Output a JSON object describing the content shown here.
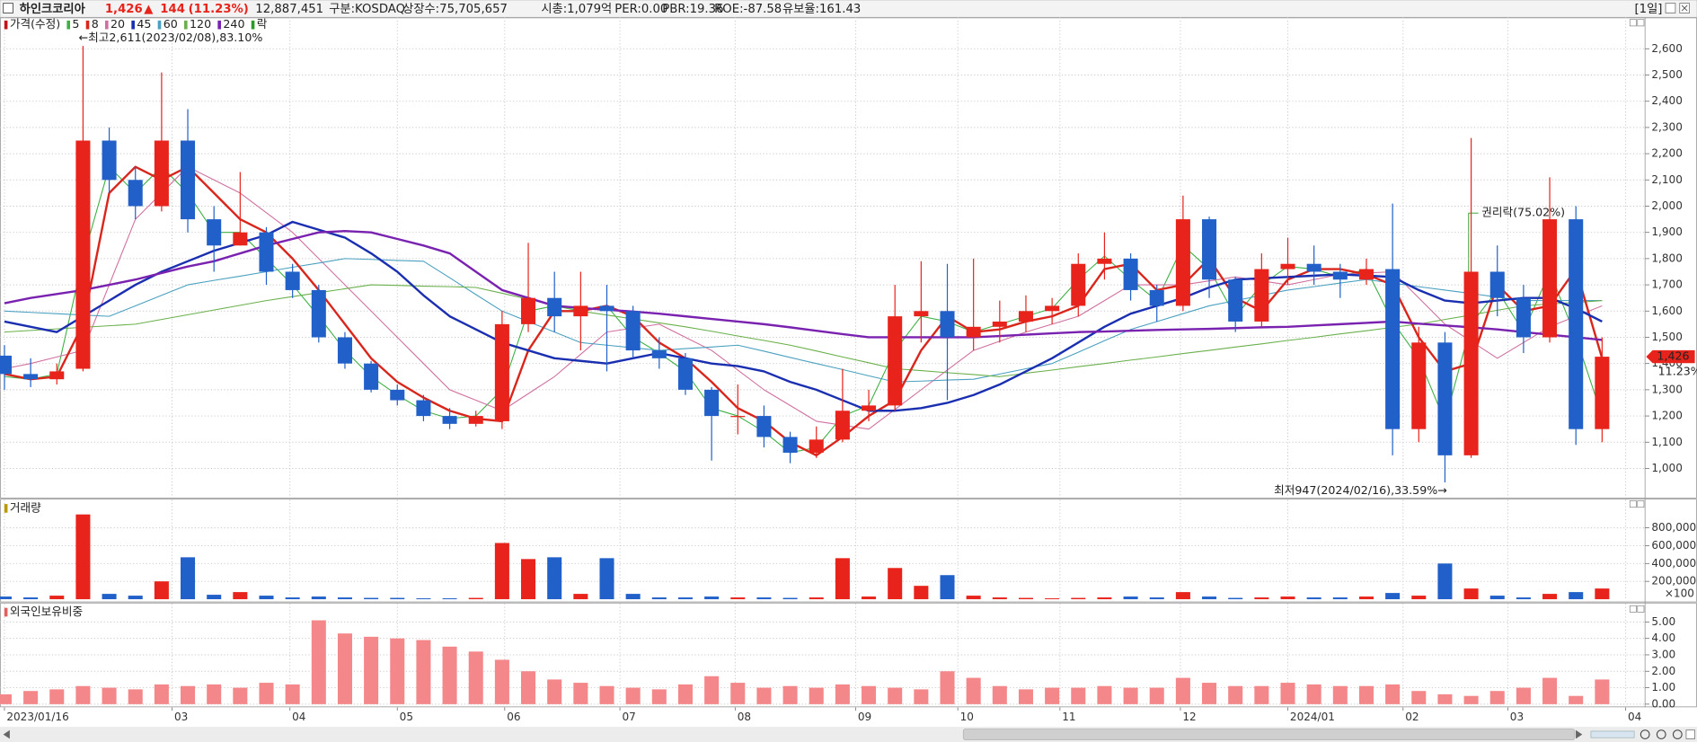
{
  "header": {
    "name": "하인크코리아",
    "price": "1,426",
    "arrow": "▲",
    "change": "144",
    "change_rate": "(11.23%)",
    "volume": "12,887,451",
    "market": "구분:KOSDAQ",
    "shares": "상장수:75,705,657",
    "market_cap": "시총:1,079억",
    "per": "PER:0.00",
    "pbr": "PBR:19.36",
    "roe": "ROE:-87.58",
    "reserve_ratio": "유보율:161.43",
    "period": "[1일]"
  },
  "chart_data": [
    {
      "type": "candlestick",
      "name": "가격(수정)",
      "name_color": "#c0141a",
      "up_color": "#e8231b",
      "down_color": "#2060c8",
      "open": [
        1430,
        1360,
        1340,
        1380,
        2250,
        2100,
        2000,
        2250,
        1950,
        1850,
        1900,
        1750,
        1680,
        1500,
        1400,
        1300,
        1260,
        1200,
        1170,
        1180,
        1550,
        1650,
        1580,
        1620,
        1600,
        1450,
        1420,
        1300,
        1200,
        1200,
        1120,
        1060,
        1110,
        1220,
        1240,
        1580,
        1600,
        1500,
        1540,
        1560,
        1600,
        1620,
        1780,
        1800,
        1680,
        1620,
        1950,
        1720,
        1560,
        1760,
        1780,
        1750,
        1720,
        1760,
        1150,
        1480,
        1050,
        1750,
        1650,
        1500,
        1950,
        1150
      ],
      "high": [
        1470,
        1420,
        1400,
        2611,
        2300,
        2150,
        2510,
        2370,
        2000,
        2130,
        1920,
        1780,
        1700,
        1520,
        1410,
        1320,
        1280,
        1230,
        1220,
        1600,
        1860,
        1750,
        1750,
        1700,
        1620,
        1500,
        1440,
        1310,
        1320,
        1240,
        1140,
        1160,
        1380,
        1300,
        1700,
        1790,
        1780,
        1800,
        1640,
        1660,
        1650,
        1820,
        1900,
        1820,
        1700,
        2040,
        1960,
        1730,
        1820,
        1880,
        1850,
        1780,
        1800,
        2010,
        1540,
        1520,
        2260,
        1850,
        1700,
        2110,
        2000,
        1500
      ],
      "low": [
        1300,
        1310,
        1320,
        1370,
        2050,
        1950,
        1980,
        1900,
        1750,
        1850,
        1700,
        1650,
        1480,
        1380,
        1290,
        1240,
        1180,
        1150,
        1160,
        1150,
        1520,
        1520,
        1450,
        1370,
        1420,
        1380,
        1280,
        1030,
        1130,
        1080,
        1020,
        1040,
        1100,
        1180,
        1220,
        1480,
        1260,
        1450,
        1480,
        1520,
        1550,
        1580,
        1720,
        1640,
        1560,
        1600,
        1650,
        1520,
        1540,
        1700,
        1700,
        1650,
        1700,
        1050,
        1100,
        947,
        1040,
        1580,
        1440,
        1480,
        1090,
        1100
      ],
      "close": [
        1360,
        1340,
        1370,
        2250,
        2100,
        2000,
        2250,
        1950,
        1850,
        1900,
        1750,
        1680,
        1500,
        1400,
        1300,
        1260,
        1200,
        1170,
        1200,
        1550,
        1650,
        1580,
        1620,
        1600,
        1450,
        1420,
        1300,
        1200,
        1200,
        1120,
        1060,
        1110,
        1220,
        1240,
        1580,
        1600,
        1500,
        1540,
        1560,
        1600,
        1620,
        1780,
        1800,
        1680,
        1620,
        1950,
        1720,
        1560,
        1760,
        1780,
        1750,
        1720,
        1760,
        1150,
        1480,
        1050,
        1750,
        1650,
        1500,
        1950,
        1150,
        1426
      ],
      "moving_averages": [
        {
          "name": "5",
          "color": "#3cb043",
          "style": "thin",
          "values": [
            1350,
            1340,
            1360,
            1800,
            2150,
            2050,
            2150,
            2050,
            1900,
            1900,
            1800,
            1700,
            1580,
            1450,
            1350,
            1280,
            1220,
            1190,
            1200,
            1300,
            1600,
            1620,
            1600,
            1620,
            1500,
            1440,
            1370,
            1230,
            1200,
            1140,
            1060,
            1080,
            1200,
            1240,
            1450,
            1580,
            1560,
            1520,
            1550,
            1580,
            1610,
            1720,
            1810,
            1720,
            1640,
            1850,
            1760,
            1580,
            1700,
            1770,
            1760,
            1730,
            1760,
            1560,
            1420,
            1180,
            1550,
            1680,
            1520,
            1750,
            1500,
            1200
          ]
        },
        {
          "name": "8",
          "color": "#d9261c",
          "style": "bold",
          "values": [
            1360,
            1340,
            1350,
            1550,
            2050,
            2150,
            2100,
            2150,
            2050,
            1950,
            1900,
            1800,
            1680,
            1550,
            1420,
            1330,
            1270,
            1220,
            1190,
            1180,
            1450,
            1600,
            1600,
            1620,
            1580,
            1480,
            1420,
            1330,
            1230,
            1180,
            1100,
            1050,
            1120,
            1200,
            1260,
            1450,
            1580,
            1520,
            1530,
            1560,
            1580,
            1620,
            1760,
            1780,
            1680,
            1700,
            1800,
            1650,
            1600,
            1720,
            1760,
            1760,
            1740,
            1700,
            1500,
            1370,
            1400,
            1700,
            1600,
            1620,
            1760,
            1420
          ]
        },
        {
          "name": "20",
          "color": "#d070a0",
          "style": "thin",
          "values": [
            1380,
            1400,
            1425,
            1450,
            1700,
            1950,
            2050,
            2150,
            2100,
            2050,
            1975,
            1900,
            1800,
            1700,
            1600,
            1500,
            1400,
            1300,
            1260,
            1220,
            1285,
            1350,
            1435,
            1520,
            1535,
            1550,
            1500,
            1450,
            1375,
            1300,
            1240,
            1180,
            1165,
            1150,
            1225,
            1300,
            1375,
            1450,
            1485,
            1520,
            1550,
            1580,
            1640,
            1700,
            1700,
            1700,
            1715,
            1730,
            1715,
            1700,
            1720,
            1740,
            1745,
            1750,
            1650,
            1550,
            1485,
            1420,
            1480,
            1540,
            1580,
            1620
          ]
        },
        {
          "name": "45",
          "color": "#1a2fb0",
          "style": "bold",
          "values": [
            1560,
            1540,
            1520,
            1580,
            1640,
            1700,
            1750,
            1790,
            1830,
            1860,
            1890,
            1940,
            1910,
            1880,
            1820,
            1750,
            1660,
            1580,
            1530,
            1480,
            1450,
            1420,
            1410,
            1400,
            1420,
            1440,
            1420,
            1400,
            1390,
            1370,
            1330,
            1300,
            1260,
            1220,
            1220,
            1230,
            1250,
            1280,
            1320,
            1370,
            1420,
            1480,
            1540,
            1590,
            1620,
            1650,
            1690,
            1720,
            1725,
            1730,
            1735,
            1740,
            1735,
            1730,
            1680,
            1640,
            1630,
            1640,
            1650,
            1650,
            1610,
            1560
          ]
        },
        {
          "name": "60",
          "color": "#4aa0c0",
          "style": "thin",
          "values": [
            1600,
            1595,
            1590,
            1585,
            1580,
            1620,
            1660,
            1700,
            1717,
            1733,
            1750,
            1767,
            1783,
            1800,
            1797,
            1793,
            1790,
            1727,
            1663,
            1600,
            1560,
            1520,
            1480,
            1470,
            1460,
            1450,
            1457,
            1463,
            1470,
            1447,
            1423,
            1400,
            1377,
            1353,
            1330,
            1333,
            1337,
            1340,
            1360,
            1380,
            1400,
            1443,
            1487,
            1530,
            1560,
            1590,
            1620,
            1640,
            1660,
            1680,
            1693,
            1707,
            1720,
            1707,
            1693,
            1680,
            1667,
            1653,
            1640,
            1640,
            1640,
            1640
          ]
        },
        {
          "name": "120",
          "color": "#6ab04c",
          "style": "thin",
          "values": [
            1520,
            1526,
            1532,
            1538,
            1544,
            1550,
            1568,
            1586,
            1604,
            1622,
            1640,
            1655,
            1670,
            1685,
            1700,
            1698,
            1695,
            1693,
            1690,
            1668,
            1645,
            1623,
            1600,
            1585,
            1570,
            1555,
            1540,
            1523,
            1505,
            1488,
            1470,
            1448,
            1425,
            1403,
            1380,
            1373,
            1365,
            1358,
            1350,
            1363,
            1375,
            1388,
            1400,
            1413,
            1425,
            1438,
            1450,
            1463,
            1475,
            1488,
            1500,
            1513,
            1525,
            1538,
            1550,
            1568,
            1585,
            1603,
            1620,
            1627,
            1633,
            1640
          ]
        },
        {
          "name": "240",
          "color": "#7a22b0",
          "style": "bold",
          "values": [
            1630,
            1650,
            1665,
            1680,
            1700,
            1720,
            1745,
            1770,
            1790,
            1820,
            1850,
            1875,
            1900,
            1905,
            1900,
            1875,
            1850,
            1820,
            1750,
            1680,
            1650,
            1620,
            1612,
            1605,
            1598,
            1590,
            1580,
            1570,
            1560,
            1550,
            1538,
            1525,
            1512,
            1500,
            1500,
            1500,
            1500,
            1500,
            1505,
            1510,
            1515,
            1520,
            1522,
            1525,
            1528,
            1530,
            1532,
            1535,
            1538,
            1540,
            1545,
            1550,
            1555,
            1560,
            1552,
            1545,
            1538,
            1530,
            1520,
            1510,
            1500,
            1490
          ]
        }
      ],
      "legend_extra": "락",
      "legend_extra_color": "#2a9a2a",
      "high_label": "←최고2,611(2023/02/08),83.10%",
      "low_label": "최저947(2024/02/16),33.59%→",
      "event_label": "권리락(75.02%)",
      "last_price": {
        "value": 1426,
        "label": "1,426"
      },
      "change_label": "11.23%",
      "xlim": [
        -0.17,
        62.64
      ],
      "ylim": [
        889,
        2720
      ],
      "yticks": [
        {
          "value": 1000,
          "label": "1,000"
        },
        {
          "value": 1100,
          "label": "1,100"
        },
        {
          "value": 1200,
          "label": "1,200"
        },
        {
          "value": 1300,
          "label": "1,300"
        },
        {
          "value": 1400,
          "label": "1,400"
        },
        {
          "value": 1500,
          "label": "1,500"
        },
        {
          "value": 1600,
          "label": "1,600"
        },
        {
          "value": 1700,
          "label": "1,700"
        },
        {
          "value": 1800,
          "label": "1,800"
        },
        {
          "value": 1900,
          "label": "1,900"
        },
        {
          "value": 2000,
          "label": "2,000"
        },
        {
          "value": 2100,
          "label": "2,100"
        },
        {
          "value": 2200,
          "label": "2,200"
        },
        {
          "value": 2300,
          "label": "2,300"
        },
        {
          "value": 2400,
          "label": "2,400"
        },
        {
          "value": 2500,
          "label": "2,500"
        },
        {
          "value": 2600,
          "label": "2,600"
        }
      ],
      "grid": true
    },
    {
      "type": "bar",
      "title": "거래량",
      "title_color": "#b89a00",
      "unit_label": "×100",
      "values": [
        30000,
        20000,
        40000,
        950000,
        60000,
        40000,
        200000,
        470000,
        50000,
        80000,
        40000,
        20000,
        30000,
        20000,
        15000,
        15000,
        10000,
        10000,
        15000,
        630000,
        450000,
        470000,
        60000,
        460000,
        60000,
        20000,
        20000,
        30000,
        20000,
        20000,
        15000,
        20000,
        460000,
        30000,
        350000,
        150000,
        270000,
        40000,
        20000,
        15000,
        10000,
        15000,
        20000,
        30000,
        20000,
        80000,
        30000,
        15000,
        20000,
        30000,
        20000,
        20000,
        30000,
        70000,
        40000,
        400000,
        120000,
        40000,
        20000,
        60000,
        80000,
        120000
      ],
      "xlim": [
        -0.17,
        62.64
      ],
      "ylim": [
        0,
        1115000
      ],
      "yticks": [
        {
          "value": 200000,
          "label": "200,000"
        },
        {
          "value": 400000,
          "label": "400,000"
        },
        {
          "value": 600000,
          "label": "600,000"
        },
        {
          "value": 800000,
          "label": "800,000"
        }
      ],
      "grid": true
    },
    {
      "type": "bar",
      "title": "외국인보유비중",
      "title_color": "#e06060",
      "color": "#f4878a",
      "values": [
        0.6,
        0.8,
        0.9,
        1.1,
        1.0,
        0.9,
        1.2,
        1.1,
        1.2,
        1.0,
        1.3,
        1.2,
        5.1,
        4.3,
        4.1,
        4.0,
        3.9,
        3.5,
        3.2,
        2.7,
        2.0,
        1.5,
        1.3,
        1.1,
        1.0,
        0.9,
        1.2,
        1.7,
        1.3,
        1.0,
        1.1,
        1.0,
        1.2,
        1.1,
        1.0,
        0.9,
        2.0,
        1.6,
        1.1,
        0.9,
        1.0,
        1.0,
        1.1,
        1.0,
        1.0,
        1.6,
        1.3,
        1.1,
        1.1,
        1.3,
        1.2,
        1.1,
        1.1,
        1.2,
        0.8,
        0.6,
        0.5,
        0.8,
        1.0,
        1.6,
        0.5,
        1.5
      ],
      "xlim": [
        -0.17,
        62.64
      ],
      "ylim": [
        0,
        6.12
      ],
      "yticks": [
        {
          "value": 0,
          "label": "0.00"
        },
        {
          "value": 1,
          "label": "1.00"
        },
        {
          "value": 2,
          "label": "2.00"
        },
        {
          "value": 3,
          "label": "3.00"
        },
        {
          "value": 4,
          "label": "4.00"
        },
        {
          "value": 5,
          "label": "5.00"
        }
      ],
      "xticks": [
        {
          "value": 0,
          "label": "2023/01/16"
        },
        {
          "value": 6.4,
          "label": "03"
        },
        {
          "value": 10.9,
          "label": "04"
        },
        {
          "value": 15,
          "label": "05"
        },
        {
          "value": 19.1,
          "label": "06"
        },
        {
          "value": 23.5,
          "label": "07"
        },
        {
          "value": 27.9,
          "label": "08"
        },
        {
          "value": 32.5,
          "label": "09"
        },
        {
          "value": 36.4,
          "label": "10"
        },
        {
          "value": 40.3,
          "label": "11"
        },
        {
          "value": 44.9,
          "label": "12"
        },
        {
          "value": 49,
          "label": "2024/01"
        },
        {
          "value": 53.4,
          "label": "02"
        },
        {
          "value": 57.4,
          "label": "03"
        },
        {
          "value": 61.9,
          "label": "04"
        }
      ],
      "grid": true
    }
  ]
}
